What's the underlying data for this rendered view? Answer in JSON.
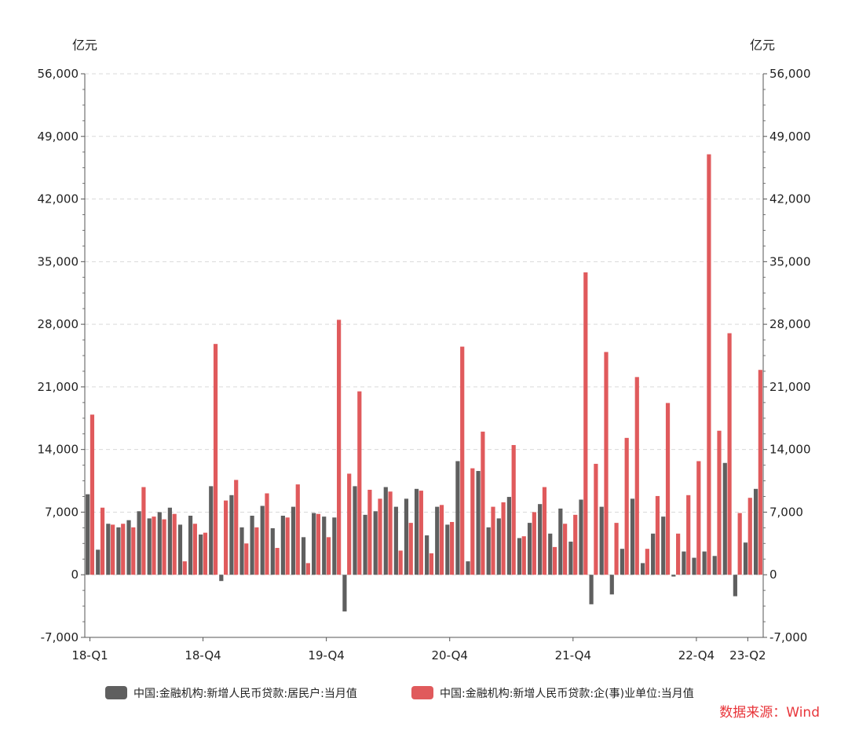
{
  "chart_data": {
    "type": "bar",
    "title": "",
    "y_unit_left": "亿元",
    "y_unit_right": "亿元",
    "ylim": [
      -7000,
      56000
    ],
    "y_ticks": [
      -7000,
      0,
      7000,
      14000,
      21000,
      28000,
      35000,
      42000,
      49000,
      56000
    ],
    "y_tick_labels": [
      "-7,000",
      "0",
      "7,000",
      "14,000",
      "21,000",
      "28,000",
      "35,000",
      "42,000",
      "49,000",
      "56,000"
    ],
    "grid": "horizontal-dashed",
    "x_tick_labels": [
      {
        "label": "18-Q1",
        "index": 0
      },
      {
        "label": "18-Q4",
        "index": 11
      },
      {
        "label": "19-Q4",
        "index": 23
      },
      {
        "label": "20-Q4",
        "index": 35
      },
      {
        "label": "21-Q4",
        "index": 47
      },
      {
        "label": "22-Q4",
        "index": 59
      },
      {
        "label": "23-Q2",
        "index": 64
      }
    ],
    "series": [
      {
        "name": "中国:金融机构:新增人民币贷款:居民户:当月值",
        "color": "#5f5f5f",
        "values": [
          9000,
          2800,
          5700,
          5300,
          6100,
          7100,
          6300,
          7000,
          7500,
          5600,
          6600,
          4500,
          9900,
          -700,
          8900,
          5300,
          6600,
          7700,
          5200,
          6600,
          7600,
          4200,
          6900,
          6500,
          6400,
          -4100,
          9900,
          6700,
          7100,
          9800,
          7600,
          8500,
          9600,
          4400,
          7600,
          5600,
          12700,
          1500,
          11600,
          5300,
          6300,
          8700,
          4100,
          5800,
          7900,
          4600,
          7400,
          3700,
          8400,
          -3300,
          7600,
          -2200,
          2900,
          8500,
          1300,
          4600,
          6500,
          -200,
          2600,
          1900,
          2600,
          2100,
          12500,
          -2400,
          3600,
          9600
        ]
      },
      {
        "name": "中国:金融机构:新增人民币贷款:企(事)业单位:当月值",
        "color": "#e05a5c",
        "values": [
          17900,
          7500,
          5600,
          5700,
          5300,
          9800,
          6500,
          6200,
          6800,
          1500,
          5700,
          4700,
          25800,
          8300,
          10600,
          3500,
          5300,
          9100,
          3000,
          6400,
          10100,
          1300,
          6800,
          4200,
          28500,
          11300,
          20500,
          9500,
          8500,
          9300,
          2700,
          5800,
          9400,
          2400,
          7800,
          5900,
          25500,
          11900,
          16000,
          7600,
          8100,
          14500,
          4300,
          7000,
          9800,
          3100,
          5700,
          6700,
          33800,
          12400,
          24900,
          5800,
          15300,
          22100,
          2900,
          8800,
          19200,
          4600,
          8900,
          12700,
          47000,
          16100,
          27000,
          6900,
          8600,
          22900
        ]
      }
    ],
    "legend_position": "bottom",
    "source_note": "数据来源：Wind"
  }
}
